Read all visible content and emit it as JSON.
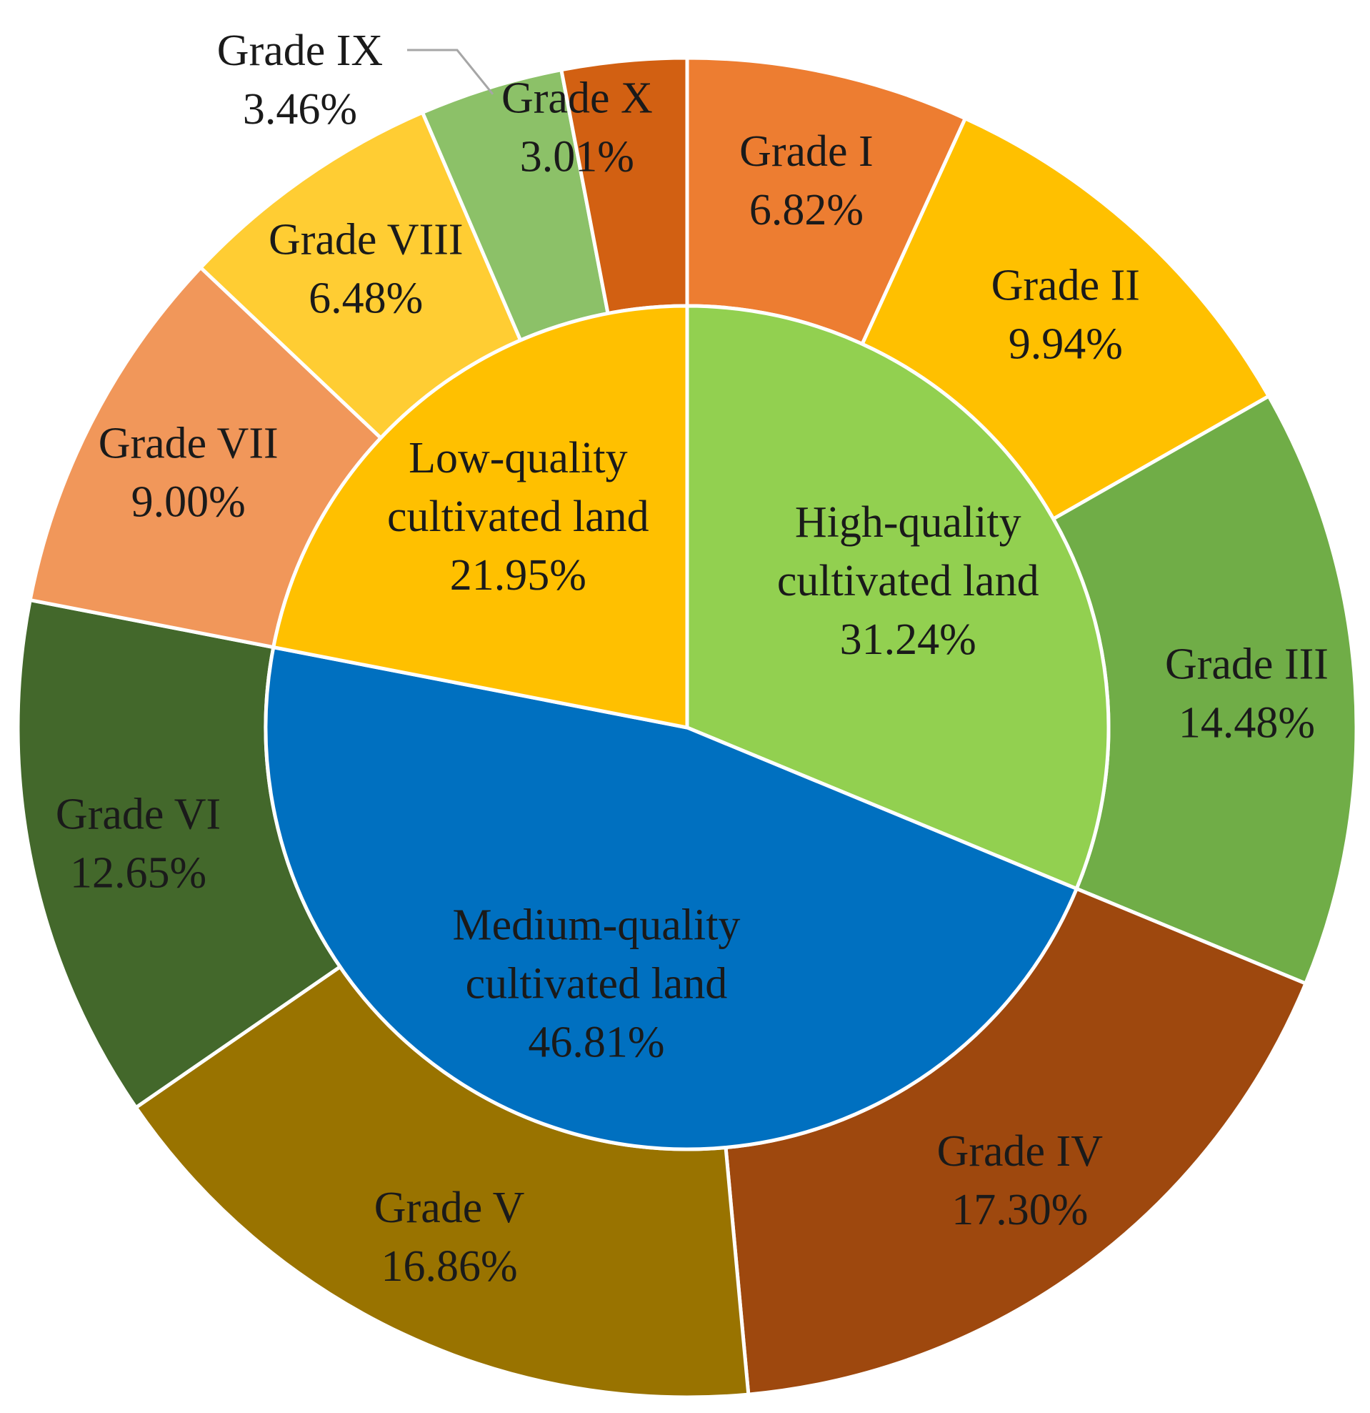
{
  "chart_data": {
    "type": "pie",
    "subtype": "nested-donut",
    "title": "",
    "outer_ring": [
      {
        "name": "Grade I",
        "label": "Grade I",
        "value_label": "6.82%",
        "value": 6.82,
        "color": "#ED7D31"
      },
      {
        "name": "Grade II",
        "label": "Grade II",
        "value_label": "9.94%",
        "value": 9.94,
        "color": "#FFC000"
      },
      {
        "name": "Grade III",
        "label": "Grade III",
        "value_label": "14.48%",
        "value": 14.48,
        "color": "#70AD47"
      },
      {
        "name": "Grade IV",
        "label": "Grade IV",
        "value_label": "17.30%",
        "value": 17.3,
        "color": "#9E480E"
      },
      {
        "name": "Grade V",
        "label": "Grade V",
        "value_label": "16.86%",
        "value": 16.86,
        "color": "#997300"
      },
      {
        "name": "Grade VI",
        "label": "Grade VI",
        "value_label": "12.65%",
        "value": 12.65,
        "color": "#43682B"
      },
      {
        "name": "Grade VII",
        "label": "Grade VII",
        "value_label": "9.00%",
        "value": 9.0,
        "color": "#F1975A"
      },
      {
        "name": "Grade VIII",
        "label": "Grade VIII",
        "value_label": "6.48%",
        "value": 6.48,
        "color": "#FFCD33"
      },
      {
        "name": "Grade IX",
        "label": "Grade IX",
        "value_label": "3.46%",
        "value": 3.46,
        "color": "#8CC168"
      },
      {
        "name": "Grade X",
        "label": "Grade X",
        "value_label": "3.01%",
        "value": 3.01,
        "color": "#D26012"
      }
    ],
    "inner_ring": [
      {
        "name": "High-quality cultivated land",
        "label_lines": [
          "High-quality",
          "cultivated land"
        ],
        "value_label": "31.24%",
        "value": 31.24,
        "color": "#92D050"
      },
      {
        "name": "Medium-quality cultivated land",
        "label_lines": [
          "Medium-quality",
          "cultivated land"
        ],
        "value_label": "46.81%",
        "value": 46.81,
        "color": "#0070C0"
      },
      {
        "name": "Low-quality cultivated land",
        "label_lines": [
          "Low-quality",
          "cultivated land"
        ],
        "value_label": "21.95%",
        "value": 21.95,
        "color": "#FFC000"
      }
    ]
  }
}
